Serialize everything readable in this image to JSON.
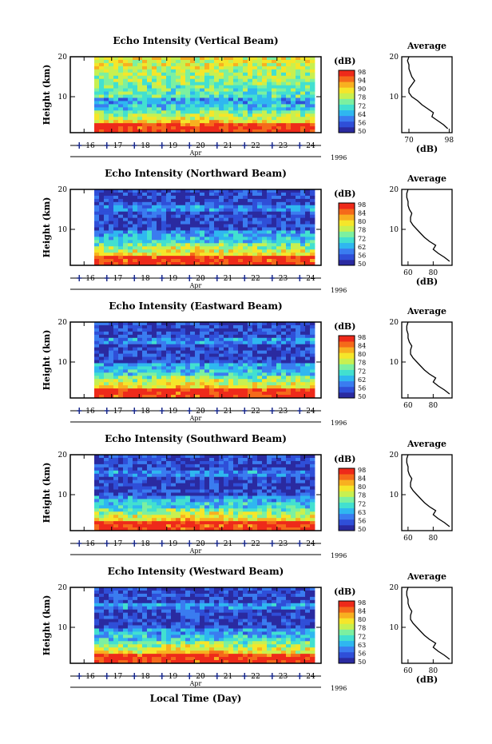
{
  "figure": {
    "xlabel": "Local Time (Day)",
    "colors": {
      "colormap": [
        "#2a2aa0",
        "#2f4fd8",
        "#3a7cf0",
        "#2fb7f0",
        "#42e0d0",
        "#7cf0a0",
        "#c8f050",
        "#f5e62a",
        "#f8b020",
        "#f56a1a",
        "#ee2a1a"
      ],
      "axis": "#000000",
      "tick_marker": "#1a2a8a"
    }
  },
  "chart_data": [
    {
      "type": "heatmap",
      "title": "Echo Intensity (Vertical Beam)",
      "ylabel": "Height (km)",
      "xlabel": "Apr",
      "year_label": "1996",
      "x_ticks": [
        "16",
        "17",
        "18",
        "19",
        "20",
        "21",
        "22",
        "23",
        "24"
      ],
      "xlim": [
        15.5,
        24.6
      ],
      "y_ticks": [
        "10",
        "20"
      ],
      "ylim": [
        1,
        20
      ],
      "colorbar": {
        "unit": "(dB)",
        "ticks": [
          "98",
          "94",
          "90",
          "78",
          "72",
          "64",
          "56",
          "50"
        ],
        "range": [
          50,
          98
        ]
      },
      "average_profile": {
        "title": "Average",
        "xlabel": "(dB)",
        "x_ticks": [
          "70",
          "98"
        ],
        "xlim": [
          65,
          100
        ],
        "y_ticks": [
          "10",
          "20"
        ],
        "height_km": [
          2,
          3,
          4,
          5,
          6,
          7,
          8,
          9,
          10,
          11,
          12,
          13,
          14,
          15,
          16,
          17,
          18,
          19,
          20
        ],
        "intensity_db": [
          97,
          94,
          90,
          86,
          87,
          83,
          79,
          76,
          72,
          70,
          70,
          72,
          74,
          72,
          71,
          70,
          70,
          69,
          70
        ]
      }
    },
    {
      "type": "heatmap",
      "title": "Echo Intensity (Northward Beam)",
      "ylabel": "Height (km)",
      "xlabel": "Apr",
      "year_label": "1996",
      "x_ticks": [
        "16",
        "17",
        "18",
        "19",
        "20",
        "21",
        "22",
        "23",
        "24"
      ],
      "xlim": [
        15.5,
        24.6
      ],
      "y_ticks": [
        "10",
        "20"
      ],
      "ylim": [
        1,
        20
      ],
      "colorbar": {
        "unit": "(dB)",
        "ticks": [
          "98",
          "84",
          "80",
          "78",
          "72",
          "62",
          "56",
          "50"
        ],
        "range": [
          50,
          98
        ]
      },
      "average_profile": {
        "title": "Average",
        "xlabel": "(dB)",
        "x_ticks": [
          "60",
          "80"
        ],
        "xlim": [
          55,
          95
        ],
        "y_ticks": [
          "10",
          "20"
        ],
        "height_km": [
          2,
          3,
          4,
          5,
          6,
          7,
          8,
          9,
          10,
          11,
          12,
          13,
          14,
          15,
          16,
          17,
          18,
          19,
          20
        ],
        "intensity_db": [
          93,
          89,
          84,
          80,
          82,
          77,
          73,
          70,
          67,
          64,
          62,
          62,
          63,
          61,
          60,
          60,
          59,
          59,
          60
        ]
      }
    },
    {
      "type": "heatmap",
      "title": "Echo Intensity (Eastward Beam)",
      "ylabel": "Height (km)",
      "xlabel": "Apr",
      "year_label": "1996",
      "x_ticks": [
        "16",
        "17",
        "18",
        "19",
        "20",
        "21",
        "22",
        "23",
        "24"
      ],
      "xlim": [
        15.5,
        24.6
      ],
      "y_ticks": [
        "10",
        "20"
      ],
      "ylim": [
        1,
        20
      ],
      "colorbar": {
        "unit": "(dB)",
        "ticks": [
          "98",
          "84",
          "80",
          "78",
          "72",
          "62",
          "56",
          "50"
        ],
        "range": [
          50,
          98
        ]
      },
      "average_profile": {
        "title": "Average",
        "xlabel": "",
        "x_ticks": [
          "60",
          "80"
        ],
        "xlim": [
          55,
          95
        ],
        "y_ticks": [
          "10",
          "20"
        ],
        "height_km": [
          2,
          3,
          4,
          5,
          6,
          7,
          8,
          9,
          10,
          11,
          12,
          13,
          14,
          15,
          16,
          17,
          18,
          19,
          20
        ],
        "intensity_db": [
          93,
          89,
          84,
          80,
          82,
          77,
          73,
          70,
          67,
          64,
          62,
          62,
          63,
          61,
          60,
          60,
          59,
          59,
          60
        ]
      }
    },
    {
      "type": "heatmap",
      "title": "Echo Intensity (Southward Beam)",
      "ylabel": "Height (km)",
      "xlabel": "Apr",
      "year_label": "1996",
      "x_ticks": [
        "16",
        "17",
        "18",
        "19",
        "20",
        "21",
        "22",
        "23",
        "24"
      ],
      "xlim": [
        15.5,
        24.6
      ],
      "y_ticks": [
        "10",
        "20"
      ],
      "ylim": [
        1,
        20
      ],
      "colorbar": {
        "unit": "(dB)",
        "ticks": [
          "98",
          "84",
          "80",
          "78",
          "72",
          "63",
          "56",
          "50"
        ],
        "range": [
          50,
          98
        ]
      },
      "average_profile": {
        "title": "Average",
        "xlabel": "",
        "x_ticks": [
          "60",
          "80"
        ],
        "xlim": [
          55,
          95
        ],
        "y_ticks": [
          "10",
          "20"
        ],
        "height_km": [
          2,
          3,
          4,
          5,
          6,
          7,
          8,
          9,
          10,
          11,
          12,
          13,
          14,
          15,
          16,
          17,
          18,
          19,
          20
        ],
        "intensity_db": [
          93,
          89,
          84,
          80,
          82,
          77,
          73,
          70,
          67,
          64,
          62,
          62,
          63,
          61,
          60,
          60,
          59,
          59,
          60
        ]
      }
    },
    {
      "type": "heatmap",
      "title": "Echo Intensity (Westward Beam)",
      "ylabel": "Height (km)",
      "xlabel": "Apr",
      "year_label": "1996",
      "x_ticks": [
        "16",
        "17",
        "18",
        "19",
        "20",
        "21",
        "22",
        "23",
        "24"
      ],
      "xlim": [
        15.5,
        24.6
      ],
      "y_ticks": [
        "10",
        "20"
      ],
      "ylim": [
        1,
        20
      ],
      "colorbar": {
        "unit": "(dB)",
        "ticks": [
          "98",
          "84",
          "80",
          "78",
          "72",
          "63",
          "56",
          "50"
        ],
        "range": [
          50,
          98
        ]
      },
      "average_profile": {
        "title": "Average",
        "xlabel": "(dB)",
        "x_ticks": [
          "60",
          "80"
        ],
        "xlim": [
          55,
          95
        ],
        "y_ticks": [
          "10",
          "20"
        ],
        "height_km": [
          2,
          3,
          4,
          5,
          6,
          7,
          8,
          9,
          10,
          11,
          12,
          13,
          14,
          15,
          16,
          17,
          18,
          19,
          20
        ],
        "intensity_db": [
          93,
          89,
          84,
          80,
          82,
          77,
          73,
          70,
          67,
          64,
          62,
          62,
          63,
          61,
          60,
          60,
          59,
          59,
          60
        ]
      }
    }
  ]
}
